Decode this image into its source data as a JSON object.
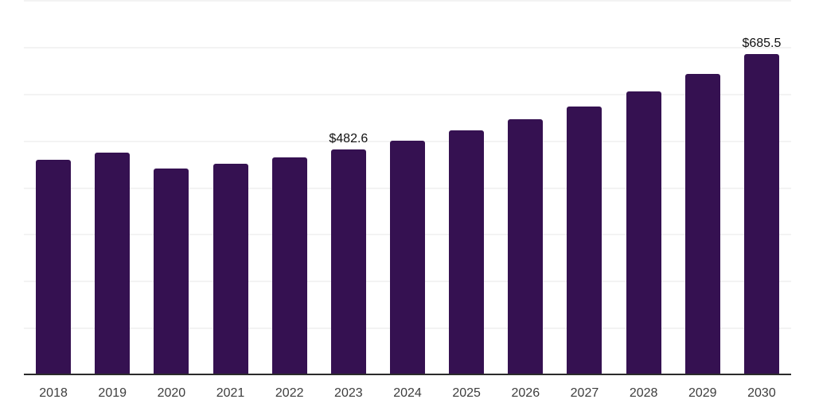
{
  "chart_data": {
    "type": "bar",
    "title": "",
    "xlabel": "",
    "ylabel": "",
    "categories": [
      "2018",
      "2019",
      "2020",
      "2021",
      "2022",
      "2023",
      "2024",
      "2025",
      "2026",
      "2027",
      "2028",
      "2029",
      "2030"
    ],
    "values": [
      460.0,
      476.4,
      441.3,
      451.4,
      465.7,
      482.6,
      500.6,
      523.3,
      547.6,
      574.2,
      605.7,
      643.7,
      685.5
    ],
    "labeled_points": [
      {
        "category": "2023",
        "index": 5,
        "text": "$482.6",
        "value": 482.6
      },
      {
        "category": "2030",
        "index": 12,
        "text": "$685.5",
        "value": 685.5
      }
    ],
    "value_prefix": "$",
    "ylim": [
      0,
      800
    ],
    "grid_step": 100,
    "grid": "horizontal",
    "legend": "none",
    "colors": {
      "bar": "#351151",
      "grid_line": "#f3f3f3",
      "axis_line": "#2b2b2b",
      "tick_label": "#3d3d3d",
      "data_label": "#111111",
      "background": "#ffffff"
    }
  }
}
